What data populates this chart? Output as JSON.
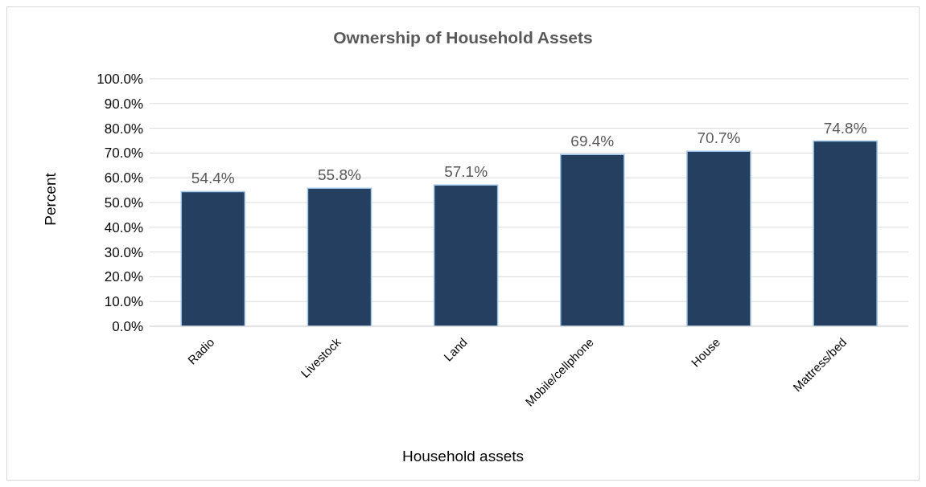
{
  "chart_data": {
    "type": "bar",
    "title": "Ownership of Household Assets",
    "xlabel": "Household assets",
    "ylabel": "Percent",
    "categories": [
      "Radio",
      "Livestock",
      "Land",
      "Mobile/cellphone",
      "House",
      "Mattress/bed"
    ],
    "values": [
      54.4,
      55.8,
      57.1,
      69.4,
      70.7,
      74.8
    ],
    "value_labels": [
      "54.4%",
      "55.8%",
      "57.1%",
      "69.4%",
      "70.7%",
      "74.8%"
    ],
    "color": "#243f60",
    "ylim": [
      0,
      100
    ],
    "yticks": [
      {
        "value": 0,
        "label": "0.0%"
      },
      {
        "value": 10,
        "label": "10.0%"
      },
      {
        "value": 20,
        "label": "20.0%"
      },
      {
        "value": 30,
        "label": "30.0%"
      },
      {
        "value": 40,
        "label": "40.0%"
      },
      {
        "value": 50,
        "label": "50.0%"
      },
      {
        "value": 60,
        "label": "60.0%"
      },
      {
        "value": 70,
        "label": "70.0%"
      },
      {
        "value": 80,
        "label": "80.0%"
      },
      {
        "value": 90,
        "label": "90.0%"
      },
      {
        "value": 100,
        "label": "100.0%"
      }
    ],
    "grid": "y",
    "legend": false
  }
}
